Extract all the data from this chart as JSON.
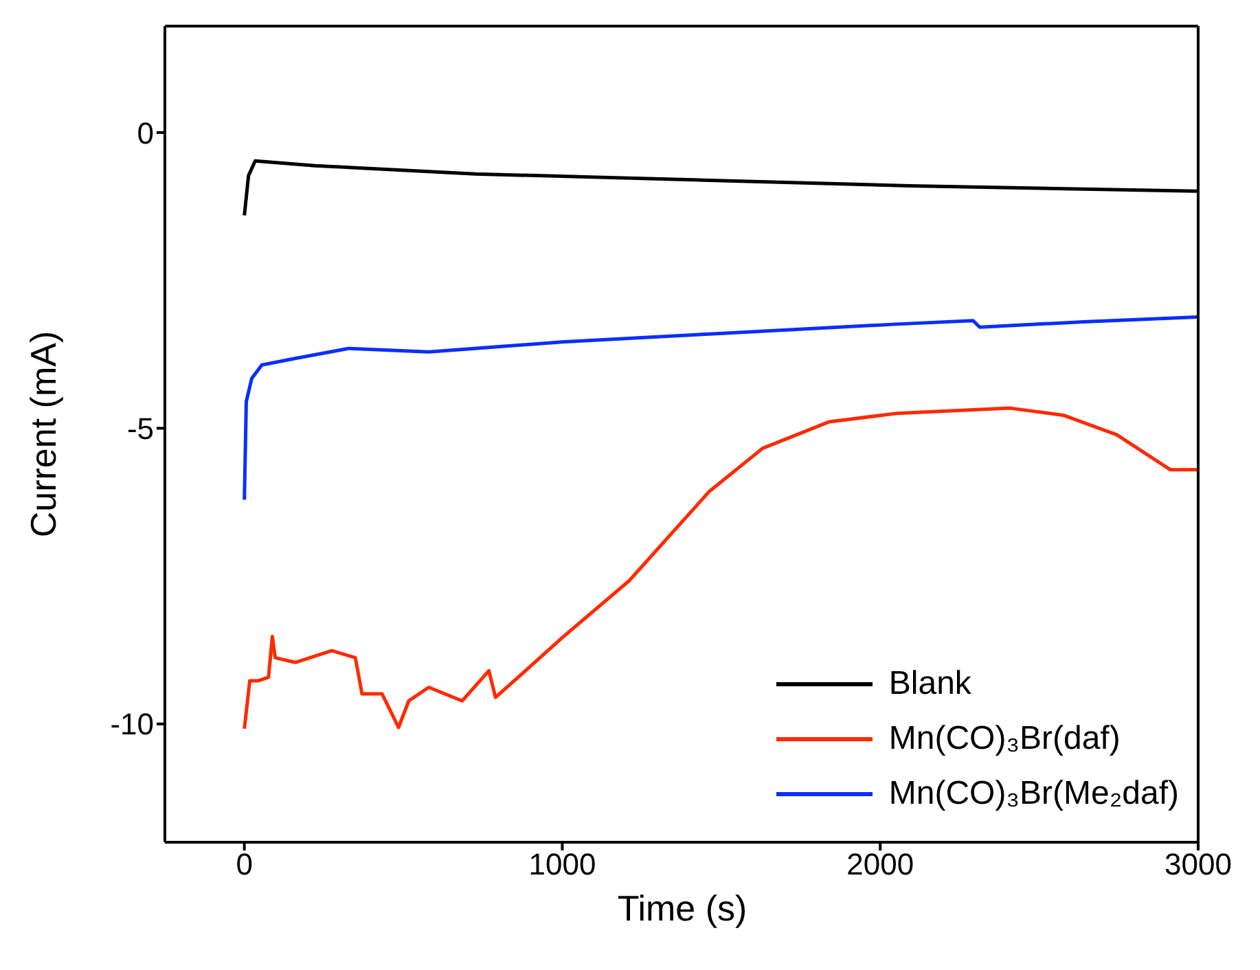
{
  "chart_data": {
    "type": "line",
    "xlabel": "Time (s)",
    "ylabel": "Current (mA)",
    "xlim": [
      -250,
      3000
    ],
    "xticks": [
      0,
      1000,
      2000,
      3000
    ],
    "ylim": [
      -12,
      1.8
    ],
    "yticks": [
      -10,
      -5,
      0
    ],
    "legend": "bottom right",
    "line_style": "solid",
    "marker": "none",
    "series": [
      {
        "name": "Blank",
        "color": "#000000",
        "x": [
          0,
          13,
          34,
          223,
          727,
          1483,
          2092,
          2996
        ],
        "values": [
          -1.4,
          -0.73,
          -0.48,
          -0.56,
          -0.7,
          -0.81,
          -0.9,
          -0.99
        ]
      },
      {
        "name": "Mn(CO)₃Br(daf)",
        "color": "#ff2a00",
        "x": [
          0,
          17,
          44,
          76,
          88,
          97,
          160,
          275,
          349,
          370,
          433,
          485,
          517,
          580,
          685,
          769,
          790,
          884,
          1000,
          1210,
          1462,
          1630,
          1840,
          2050,
          2408,
          2576,
          2744,
          2912,
          2996
        ],
        "values": [
          -10.08,
          -9.27,
          -9.27,
          -9.21,
          -8.52,
          -8.88,
          -8.96,
          -8.76,
          -8.88,
          -9.49,
          -9.49,
          -10.06,
          -9.61,
          -9.38,
          -9.61,
          -9.1,
          -9.55,
          -9.1,
          -8.54,
          -7.58,
          -6.07,
          -5.34,
          -4.89,
          -4.75,
          -4.66,
          -4.78,
          -5.11,
          -5.7,
          -5.7
        ]
      },
      {
        "name": "Mn(CO)₃Br(Me₂daf)",
        "color": "#0a2eff",
        "x": [
          0,
          6,
          23,
          55,
          160,
          328,
          580,
          1000,
          1483,
          2050,
          2292,
          2313,
          2639,
          2996
        ],
        "values": [
          -6.21,
          -4.55,
          -4.16,
          -3.93,
          -3.82,
          -3.65,
          -3.71,
          -3.54,
          -3.4,
          -3.24,
          -3.18,
          -3.29,
          -3.2,
          -3.12
        ]
      }
    ]
  }
}
